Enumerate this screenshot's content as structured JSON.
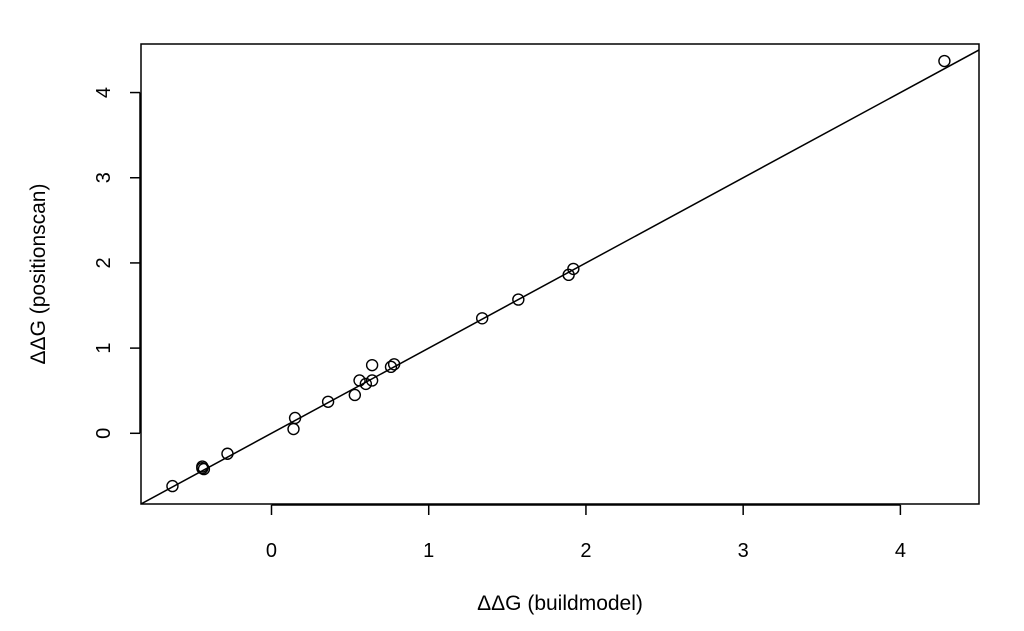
{
  "chart_data": {
    "type": "scatter",
    "xlabel": "ΔΔG (buildmodel)",
    "ylabel": "ΔΔG (positionscan)",
    "xlim": [
      -0.83,
      4.5
    ],
    "ylim": [
      -0.83,
      4.57
    ],
    "xticks": [
      0,
      1,
      2,
      3,
      4
    ],
    "yticks": [
      0,
      1,
      2,
      3,
      4
    ],
    "grid": false,
    "reference_line": {
      "slope": 1,
      "intercept": 0
    },
    "points": [
      {
        "x": -0.63,
        "y": -0.62
      },
      {
        "x": -0.44,
        "y": -0.39
      },
      {
        "x": -0.44,
        "y": -0.41
      },
      {
        "x": -0.43,
        "y": -0.42
      },
      {
        "x": -0.28,
        "y": -0.24
      },
      {
        "x": 0.14,
        "y": 0.05
      },
      {
        "x": 0.15,
        "y": 0.18
      },
      {
        "x": 0.36,
        "y": 0.37
      },
      {
        "x": 0.53,
        "y": 0.45
      },
      {
        "x": 0.56,
        "y": 0.62
      },
      {
        "x": 0.6,
        "y": 0.58
      },
      {
        "x": 0.64,
        "y": 0.62
      },
      {
        "x": 0.64,
        "y": 0.8
      },
      {
        "x": 0.76,
        "y": 0.78
      },
      {
        "x": 0.78,
        "y": 0.81
      },
      {
        "x": 1.34,
        "y": 1.35
      },
      {
        "x": 1.57,
        "y": 1.57
      },
      {
        "x": 1.89,
        "y": 1.86
      },
      {
        "x": 1.92,
        "y": 1.93
      },
      {
        "x": 4.28,
        "y": 4.37
      }
    ]
  }
}
